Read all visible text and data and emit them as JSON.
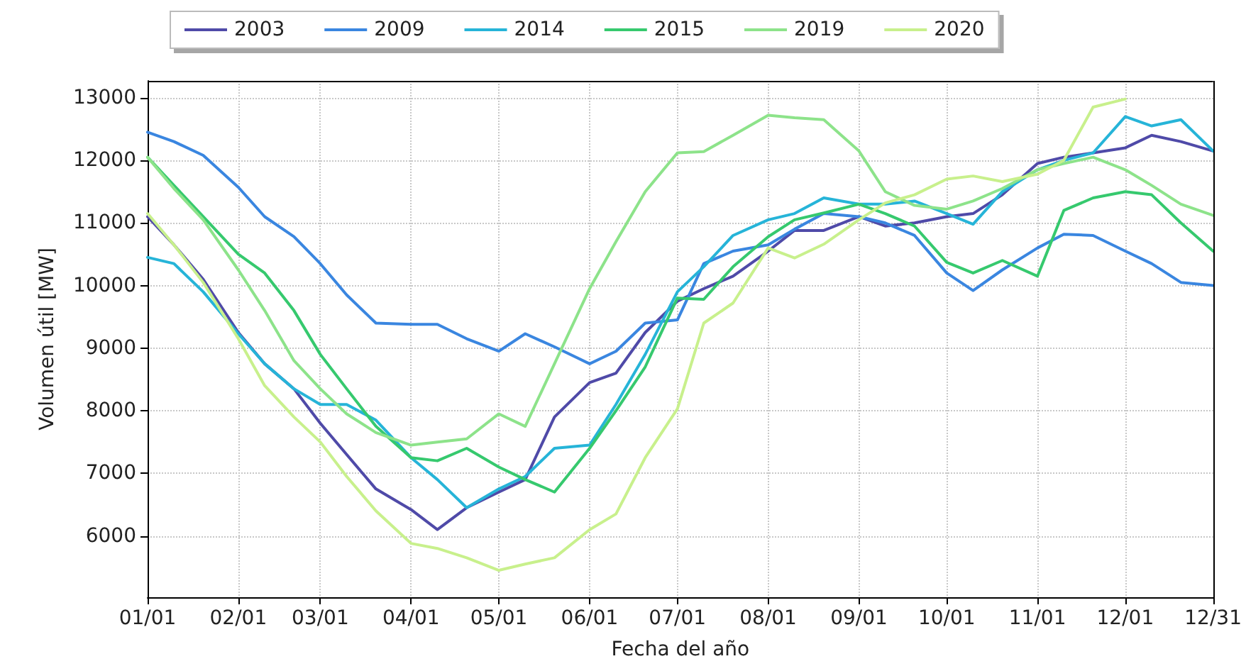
{
  "chart_data": {
    "type": "line",
    "xlabel": "Fecha del año",
    "ylabel": "Volumen útil [MW]",
    "x": [
      "--01-01",
      "--01-10",
      "--01-20",
      "--02-01",
      "--02-10",
      "--02-20",
      "--03-01",
      "--03-10",
      "--03-20",
      "--04-01",
      "--04-10",
      "--04-20",
      "--05-01",
      "--05-10",
      "--05-20",
      "--06-01",
      "--06-10",
      "--06-20",
      "--07-01",
      "--07-10",
      "--07-20",
      "--08-01",
      "--08-10",
      "--08-20",
      "--09-01",
      "--09-10",
      "--09-20",
      "--10-01",
      "--10-10",
      "--10-20",
      "--11-01",
      "--11-10",
      "--11-20",
      "--12-01",
      "--12-10",
      "--12-20",
      "--12-31"
    ],
    "series": [
      {
        "name": "2003",
        "color": "#4f4aa8",
        "values": [
          11100,
          10650,
          10100,
          9250,
          8750,
          8350,
          7800,
          7300,
          6750,
          6420,
          6100,
          6450,
          6700,
          6900,
          7900,
          8450,
          8600,
          9250,
          9750,
          9950,
          10150,
          10550,
          10880,
          10880,
          11100,
          10950,
          11000,
          11100,
          11150,
          11450,
          11950,
          12050,
          12120,
          12200,
          12400,
          12300,
          12150
        ]
      },
      {
        "name": "2009",
        "color": "#3a86e0",
        "values": [
          12450,
          12300,
          12080,
          11570,
          11100,
          10780,
          10350,
          9850,
          9400,
          9380,
          9380,
          9150,
          8950,
          9230,
          9020,
          8750,
          8950,
          9400,
          9450,
          10350,
          10550,
          10650,
          10900,
          11150,
          11100,
          11000,
          10800,
          10200,
          9920,
          10250,
          10600,
          10820,
          10800,
          10550,
          10350,
          10050,
          10000
        ]
      },
      {
        "name": "2014",
        "color": "#26b4d8",
        "values": [
          10450,
          10350,
          9900,
          9230,
          8750,
          8350,
          8100,
          8100,
          7850,
          7250,
          6900,
          6450,
          6750,
          6950,
          7400,
          7450,
          8100,
          8900,
          9900,
          10300,
          10800,
          11050,
          11150,
          11400,
          11300,
          11300,
          11350,
          11150,
          10980,
          11500,
          11850,
          12000,
          12120,
          12700,
          12550,
          12650,
          12150
        ]
      },
      {
        "name": "2015",
        "color": "#36c96e",
        "values": [
          12050,
          11600,
          11100,
          10500,
          10200,
          9600,
          8900,
          8350,
          7750,
          7250,
          7200,
          7400,
          7100,
          6900,
          6700,
          7400,
          8000,
          8700,
          9800,
          9780,
          10300,
          10780,
          11050,
          11160,
          11300,
          11150,
          10950,
          10370,
          10200,
          10400,
          10150,
          11200,
          11400,
          11500,
          11450,
          11000,
          10550
        ]
      },
      {
        "name": "2019",
        "color": "#8de38a",
        "values": [
          12050,
          11550,
          11050,
          10250,
          9600,
          8800,
          8350,
          7950,
          7650,
          7450,
          7500,
          7550,
          7950,
          7750,
          8750,
          9950,
          10700,
          11500,
          12120,
          12140,
          12400,
          12720,
          12680,
          12650,
          12150,
          11500,
          11280,
          11220,
          11350,
          11550,
          11850,
          11950,
          12050,
          11850,
          11600,
          11300,
          11120
        ]
      },
      {
        "name": "2020",
        "color": "#c8f08c",
        "values": [
          11150,
          10650,
          10050,
          9150,
          8400,
          7900,
          7500,
          6950,
          6400,
          5880,
          5800,
          5650,
          5450,
          5550,
          5650,
          6100,
          6350,
          7250,
          8030,
          9400,
          9720,
          10600,
          10440,
          10660,
          11050,
          11320,
          11450,
          11700,
          11750,
          11660,
          11780,
          12000,
          12850,
          12980,
          null,
          null,
          null
        ]
      }
    ],
    "xlim": [
      "--01-01",
      "--12-31"
    ],
    "xticks": [
      {
        "value": "--01-01",
        "label": "01/01"
      },
      {
        "value": "--02-01",
        "label": "02/01"
      },
      {
        "value": "--03-01",
        "label": "03/01"
      },
      {
        "value": "--04-01",
        "label": "04/01"
      },
      {
        "value": "--05-01",
        "label": "05/01"
      },
      {
        "value": "--06-01",
        "label": "06/01"
      },
      {
        "value": "--07-01",
        "label": "07/01"
      },
      {
        "value": "--08-01",
        "label": "08/01"
      },
      {
        "value": "--09-01",
        "label": "09/01"
      },
      {
        "value": "--10-01",
        "label": "10/01"
      },
      {
        "value": "--11-01",
        "label": "11/01"
      },
      {
        "value": "--12-01",
        "label": "12/01"
      },
      {
        "value": "--12-31",
        "label": "12/31"
      }
    ],
    "ylim": [
      5020,
      13270
    ],
    "yticks": [
      6000,
      7000,
      8000,
      9000,
      10000,
      11000,
      12000,
      13000
    ],
    "grid": true,
    "legend": "top",
    "marker": "none",
    "line_style": "solid"
  }
}
